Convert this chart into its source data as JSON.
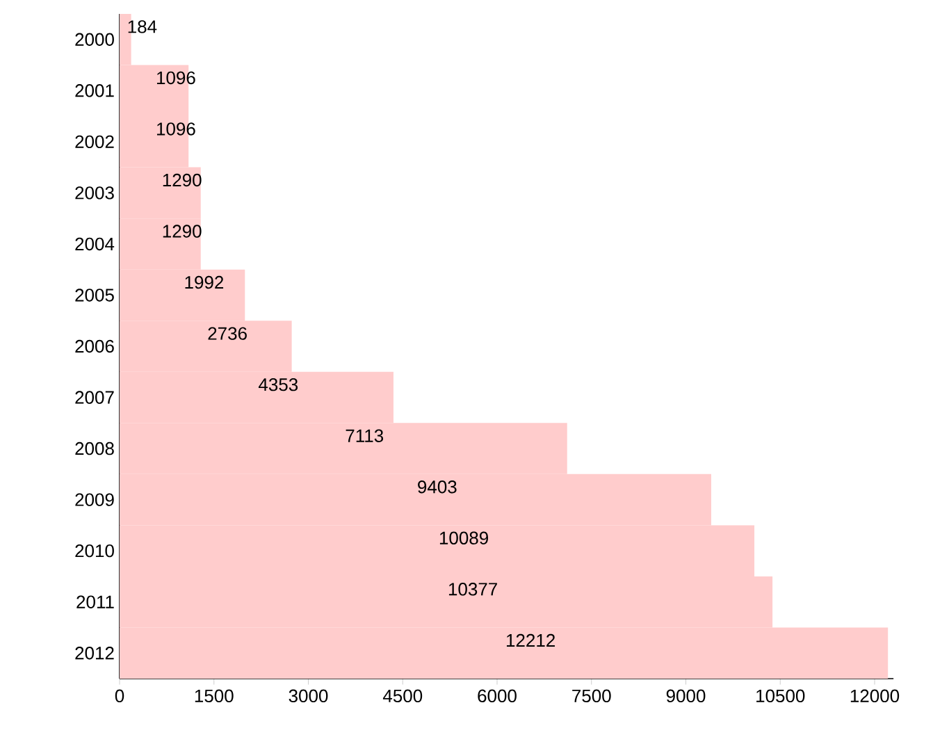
{
  "chart_data": {
    "type": "bar",
    "orientation": "horizontal",
    "categories": [
      "2000",
      "2001",
      "2002",
      "2003",
      "2004",
      "2005",
      "2006",
      "2007",
      "2008",
      "2009",
      "2010",
      "2011",
      "2012"
    ],
    "values": [
      184,
      1096,
      1096,
      1290,
      1290,
      1992,
      2736,
      4353,
      7113,
      9403,
      10089,
      10377,
      12212
    ],
    "color": "#ffcccc",
    "data_labels": true,
    "grid": false,
    "xlim": [
      0,
      12300
    ],
    "xticks": [
      0,
      1500,
      3000,
      4500,
      6000,
      7500,
      9000,
      10500,
      12000
    ]
  }
}
